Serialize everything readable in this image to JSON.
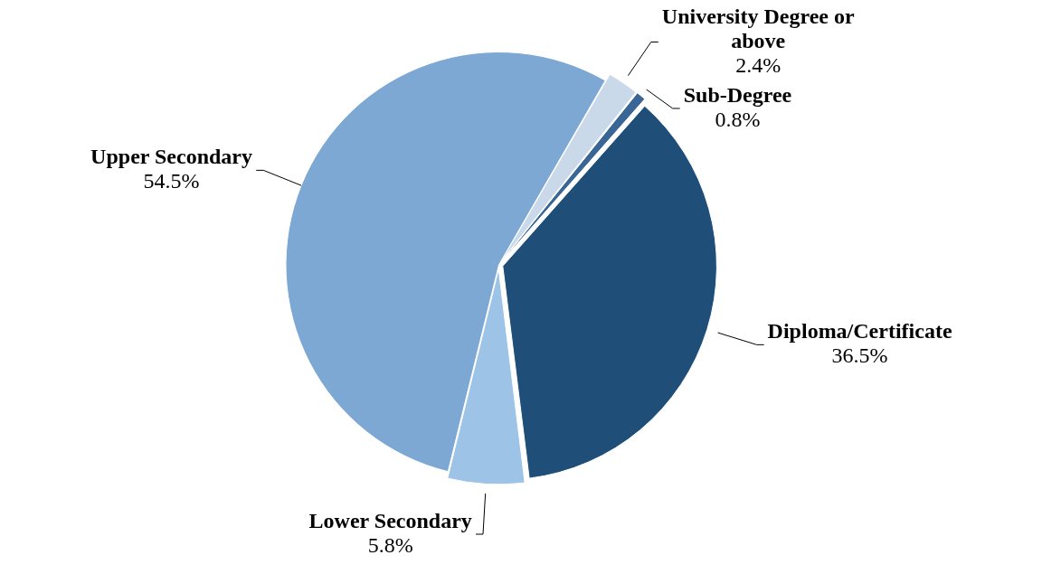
{
  "chart_data": {
    "type": "pie",
    "categories": [
      "University Degree or above",
      "Sub-Degree",
      "Diploma/Certificate",
      "Lower Secondary",
      "Upper Secondary"
    ],
    "values": [
      2.4,
      0.8,
      36.5,
      5.8,
      54.5
    ],
    "colors": [
      "#c9d9ea",
      "#3a6696",
      "#1f4e79",
      "#9dc3e6",
      "#7ea8d4"
    ],
    "value_labels": [
      "2.4%",
      "0.8%",
      "36.5%",
      "5.8%",
      "54.5%"
    ],
    "legend": false
  }
}
